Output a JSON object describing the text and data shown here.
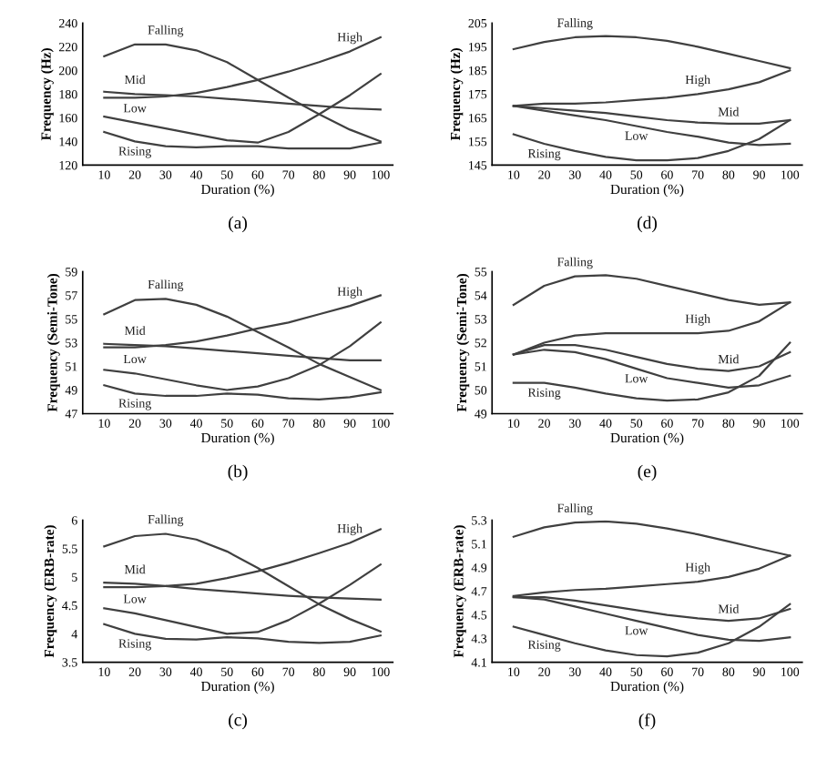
{
  "chart_data": [
    {
      "type": "line",
      "xlabel": "Duration (%)",
      "ylabel": "Frequency (Hz)",
      "annotations": [
        "(a)"
      ],
      "x": [
        10,
        20,
        30,
        40,
        50,
        60,
        70,
        80,
        90,
        100
      ],
      "xlim": [
        3,
        104
      ],
      "xticks": [
        10,
        20,
        30,
        40,
        50,
        60,
        70,
        80,
        90,
        100
      ],
      "ylim": [
        120,
        240
      ],
      "yticks": [
        120,
        140,
        160,
        180,
        200,
        220,
        240
      ],
      "marker": "none",
      "line_style": "solid",
      "grid": false,
      "legend": false,
      "series": [
        {
          "name": "Falling",
          "color": "#404040",
          "values": [
            212,
            222,
            222,
            217,
            207,
            192,
            177,
            163,
            150,
            140
          ]
        },
        {
          "name": "High",
          "color": "#404040",
          "values": [
            177,
            177,
            178,
            181,
            186,
            192,
            199,
            207,
            216,
            228
          ]
        },
        {
          "name": "Mid",
          "color": "#404040",
          "values": [
            182,
            180,
            179,
            178,
            176,
            174,
            172,
            170,
            168,
            167
          ]
        },
        {
          "name": "Low",
          "color": "#404040",
          "values": [
            161,
            156,
            151,
            146,
            141,
            139,
            148,
            163,
            179,
            197
          ]
        },
        {
          "name": "Rising",
          "color": "#404040",
          "values": [
            148,
            140,
            136,
            135,
            136,
            136,
            134,
            134,
            134,
            139
          ]
        }
      ]
    },
    {
      "type": "line",
      "xlabel": "Duration (%)",
      "ylabel": "Frequency (Hz)",
      "annotations": [
        "(d)"
      ],
      "x": [
        10,
        20,
        30,
        40,
        50,
        60,
        70,
        80,
        90,
        100
      ],
      "xlim": [
        3,
        104
      ],
      "xticks": [
        10,
        20,
        30,
        40,
        50,
        60,
        70,
        80,
        90,
        100
      ],
      "ylim": [
        145,
        205
      ],
      "yticks": [
        145,
        155,
        165,
        175,
        185,
        195,
        205
      ],
      "marker": "none",
      "line_style": "solid",
      "grid": false,
      "legend": false,
      "series": [
        {
          "name": "Falling",
          "color": "#404040",
          "values": [
            194,
            197,
            199,
            199.5,
            199,
            197.5,
            195,
            192,
            189,
            186
          ]
        },
        {
          "name": "High",
          "color": "#404040",
          "values": [
            170,
            171,
            171,
            171.5,
            172.5,
            173.5,
            175,
            177,
            180,
            185
          ]
        },
        {
          "name": "Mid",
          "color": "#404040",
          "values": [
            170,
            169,
            168,
            167,
            165.5,
            164,
            163,
            162.5,
            162.5,
            164
          ]
        },
        {
          "name": "Low",
          "color": "#404040",
          "values": [
            170,
            168,
            166,
            164,
            161.5,
            159,
            157,
            154.5,
            153.5,
            154
          ]
        },
        {
          "name": "Rising",
          "color": "#404040",
          "values": [
            158,
            154,
            151,
            148.5,
            147,
            147,
            148,
            151,
            156,
            164
          ]
        }
      ]
    },
    {
      "type": "line",
      "xlabel": "Duration (%)",
      "ylabel": "Frequency (Semi-Tone)",
      "annotations": [
        "(b)"
      ],
      "x": [
        10,
        20,
        30,
        40,
        50,
        60,
        70,
        80,
        90,
        100
      ],
      "xlim": [
        3,
        104
      ],
      "xticks": [
        10,
        20,
        30,
        40,
        50,
        60,
        70,
        80,
        90,
        100
      ],
      "ylim": [
        47,
        59
      ],
      "yticks": [
        47,
        49,
        51,
        53,
        55,
        57,
        59
      ],
      "marker": "none",
      "line_style": "solid",
      "grid": false,
      "legend": false,
      "series": [
        {
          "name": "Falling",
          "color": "#404040",
          "values": [
            55.4,
            56.6,
            56.7,
            56.2,
            55.2,
            53.9,
            52.6,
            51.2,
            50.1,
            49.0
          ]
        },
        {
          "name": "High",
          "color": "#404040",
          "values": [
            52.6,
            52.6,
            52.8,
            53.1,
            53.6,
            54.2,
            54.7,
            55.4,
            56.1,
            57.0
          ]
        },
        {
          "name": "Mid",
          "color": "#404040",
          "values": [
            52.9,
            52.8,
            52.7,
            52.5,
            52.3,
            52.1,
            51.9,
            51.7,
            51.5,
            51.5
          ]
        },
        {
          "name": "Low",
          "color": "#404040",
          "values": [
            50.7,
            50.4,
            49.9,
            49.4,
            49.0,
            49.3,
            50.0,
            51.1,
            52.7,
            54.7
          ]
        },
        {
          "name": "Rising",
          "color": "#404040",
          "values": [
            49.4,
            48.7,
            48.5,
            48.5,
            48.7,
            48.6,
            48.3,
            48.2,
            48.4,
            48.8
          ]
        }
      ]
    },
    {
      "type": "line",
      "xlabel": "Duration (%)",
      "ylabel": "Frequency (Semi-Tone)",
      "annotations": [
        "(e)"
      ],
      "x": [
        10,
        20,
        30,
        40,
        50,
        60,
        70,
        80,
        90,
        100
      ],
      "xlim": [
        3,
        104
      ],
      "xticks": [
        10,
        20,
        30,
        40,
        50,
        60,
        70,
        80,
        90,
        100
      ],
      "ylim": [
        49,
        55
      ],
      "yticks": [
        49,
        50,
        51,
        52,
        53,
        54,
        55
      ],
      "marker": "none",
      "line_style": "solid",
      "grid": false,
      "legend": false,
      "series": [
        {
          "name": "Falling",
          "color": "#404040",
          "values": [
            53.6,
            54.4,
            54.8,
            54.85,
            54.7,
            54.4,
            54.1,
            53.8,
            53.6,
            53.7
          ]
        },
        {
          "name": "High",
          "color": "#404040",
          "values": [
            51.5,
            52.0,
            52.3,
            52.4,
            52.4,
            52.4,
            52.4,
            52.5,
            52.9,
            53.7
          ]
        },
        {
          "name": "Mid",
          "color": "#404040",
          "values": [
            51.5,
            51.9,
            51.9,
            51.7,
            51.4,
            51.1,
            50.9,
            50.8,
            51.0,
            51.6
          ]
        },
        {
          "name": "Low",
          "color": "#404040",
          "values": [
            51.5,
            51.7,
            51.6,
            51.3,
            50.9,
            50.5,
            50.3,
            50.1,
            50.2,
            50.6
          ]
        },
        {
          "name": "Rising",
          "color": "#404040",
          "values": [
            50.3,
            50.3,
            50.1,
            49.85,
            49.65,
            49.55,
            49.6,
            49.9,
            50.6,
            52.0
          ]
        }
      ]
    },
    {
      "type": "line",
      "xlabel": "Duration (%)",
      "ylabel": "Frequency (ERB-rate)",
      "annotations": [
        "(c)"
      ],
      "x": [
        10,
        20,
        30,
        40,
        50,
        60,
        70,
        80,
        90,
        100
      ],
      "xlim": [
        3,
        104
      ],
      "xticks": [
        10,
        20,
        30,
        40,
        50,
        60,
        70,
        80,
        90,
        100
      ],
      "ylim": [
        3.5,
        6
      ],
      "yticks": [
        3.5,
        4,
        4.5,
        5,
        5.5,
        6
      ],
      "marker": "none",
      "line_style": "solid",
      "grid": false,
      "legend": false,
      "series": [
        {
          "name": "Falling",
          "color": "#404040",
          "values": [
            5.54,
            5.72,
            5.76,
            5.66,
            5.45,
            5.16,
            4.84,
            4.52,
            4.26,
            4.04
          ]
        },
        {
          "name": "High",
          "color": "#404040",
          "values": [
            4.82,
            4.82,
            4.84,
            4.88,
            4.98,
            5.1,
            5.25,
            5.42,
            5.6,
            5.84
          ]
        },
        {
          "name": "Mid",
          "color": "#404040",
          "values": [
            4.9,
            4.88,
            4.84,
            4.79,
            4.75,
            4.71,
            4.67,
            4.64,
            4.62,
            4.6
          ]
        },
        {
          "name": "Low",
          "color": "#404040",
          "values": [
            4.45,
            4.36,
            4.24,
            4.12,
            4.0,
            4.03,
            4.24,
            4.53,
            4.86,
            5.22
          ]
        },
        {
          "name": "Rising",
          "color": "#404040",
          "values": [
            4.17,
            4.0,
            3.91,
            3.9,
            3.94,
            3.92,
            3.86,
            3.84,
            3.86,
            3.97
          ]
        }
      ]
    },
    {
      "type": "line",
      "xlabel": "Duration (%)",
      "ylabel": "Frequency (ERB-rate)",
      "annotations": [
        "(f)"
      ],
      "x": [
        10,
        20,
        30,
        40,
        50,
        60,
        70,
        80,
        90,
        100
      ],
      "xlim": [
        3,
        104
      ],
      "xticks": [
        10,
        20,
        30,
        40,
        50,
        60,
        70,
        80,
        90,
        100
      ],
      "ylim": [
        4.1,
        5.3
      ],
      "yticks": [
        4.1,
        4.3,
        4.5,
        4.7,
        4.9,
        5.1,
        5.3
      ],
      "marker": "none",
      "line_style": "solid",
      "grid": false,
      "legend": false,
      "series": [
        {
          "name": "Falling",
          "color": "#404040",
          "values": [
            5.16,
            5.24,
            5.28,
            5.29,
            5.27,
            5.23,
            5.18,
            5.12,
            5.06,
            5.0
          ]
        },
        {
          "name": "High",
          "color": "#404040",
          "values": [
            4.66,
            4.69,
            4.71,
            4.72,
            4.74,
            4.76,
            4.78,
            4.82,
            4.89,
            5.0
          ]
        },
        {
          "name": "Mid",
          "color": "#404040",
          "values": [
            4.65,
            4.65,
            4.62,
            4.58,
            4.54,
            4.5,
            4.47,
            4.45,
            4.47,
            4.55
          ]
        },
        {
          "name": "Low",
          "color": "#404040",
          "values": [
            4.65,
            4.63,
            4.57,
            4.51,
            4.45,
            4.39,
            4.33,
            4.29,
            4.28,
            4.31
          ]
        },
        {
          "name": "Rising",
          "color": "#404040",
          "values": [
            4.4,
            4.33,
            4.26,
            4.2,
            4.16,
            4.15,
            4.18,
            4.26,
            4.4,
            4.59
          ]
        }
      ]
    }
  ]
}
